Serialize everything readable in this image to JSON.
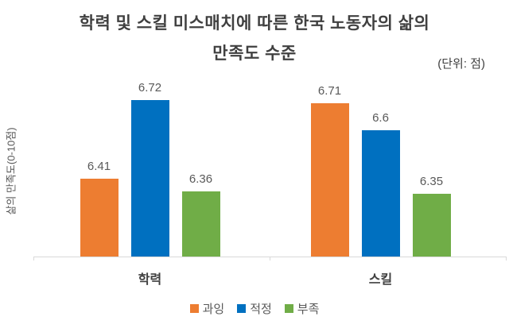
{
  "header": {
    "title_line1": "학력 및 스킬 미스매치에 따른 한국 노동자의 삶의",
    "title_line2": "만족도 수준",
    "unit_note": "(단위: 점)"
  },
  "axes": {
    "y_label": "삶의 만족도(0-10점)"
  },
  "colors": {
    "over": "#ED7D31",
    "adequate": "#0070C0",
    "under": "#70AD47",
    "title_text": "#404040",
    "label_text": "#595959",
    "axis_line": "#D9D9D9",
    "background": "#FFFFFF"
  },
  "chart_data": {
    "type": "bar",
    "title": "학력 및 스킬 미스매치에 따른 한국 노동자의 삶의 만족도 수준",
    "unit_note": "(단위: 점)",
    "ylabel": "삶의 만족도(0-10점)",
    "categories": [
      "학력",
      "스킬"
    ],
    "series": [
      {
        "name": "과잉",
        "color": "#ED7D31",
        "values": [
          6.41,
          6.71
        ]
      },
      {
        "name": "적정",
        "color": "#0070C0",
        "values": [
          6.72,
          6.6
        ]
      },
      {
        "name": "부족",
        "color": "#70AD47",
        "values": [
          6.36,
          6.35
        ]
      }
    ],
    "ylim": [
      6.1,
      6.8
    ],
    "grid": false,
    "legend_position": "bottom",
    "data_labels": true
  }
}
